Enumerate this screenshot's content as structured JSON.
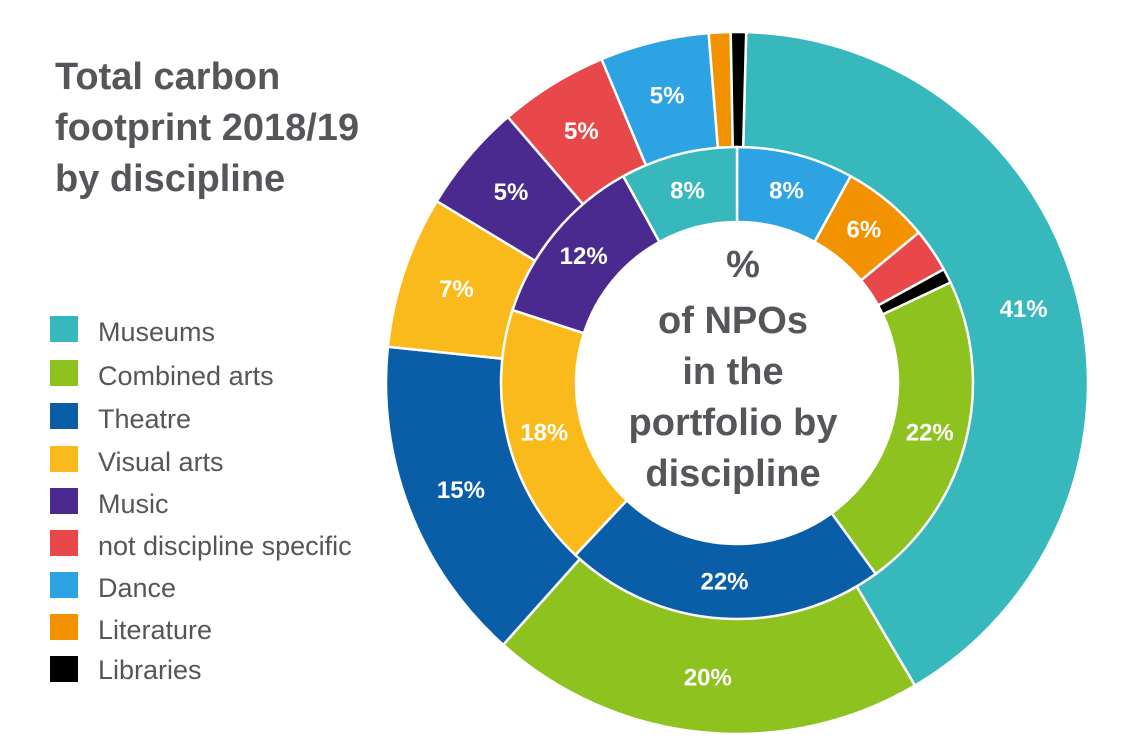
{
  "chart_data": {
    "type": "pie",
    "title": [
      "Total carbon",
      "footprint 2018/19",
      "by discipline"
    ],
    "center_label": [
      "%",
      "of NPOs",
      "in the",
      "portfolio by",
      "discipline"
    ],
    "legend": [
      {
        "name": "Museums",
        "color": "#37b8bd"
      },
      {
        "name": "Combined arts",
        "color": "#8dc21f"
      },
      {
        "name": "Theatre",
        "color": "#0a5ea8"
      },
      {
        "name": "Visual arts",
        "color": "#fbba1b"
      },
      {
        "name": "Music",
        "color": "#4b2a8f"
      },
      {
        "name": "not discipline specific",
        "color": "#e84849"
      },
      {
        "name": "Dance",
        "color": "#2ea3e3"
      },
      {
        "name": "Literature",
        "color": "#f39200"
      },
      {
        "name": "Libraries",
        "color": "#000000"
      }
    ],
    "series": [
      {
        "name": "Total carbon footprint 2018/19 by discipline",
        "ring": "outer",
        "values": [
          41,
          20,
          15,
          7,
          5,
          5,
          5,
          1,
          0.7
        ],
        "labels": [
          "41%",
          "20%",
          "15%",
          "7%",
          "5%",
          "5%",
          "5%",
          "",
          ""
        ]
      },
      {
        "name": "% of NPOs in the portfolio by discipline",
        "ring": "inner",
        "values": [
          8,
          22,
          22,
          18,
          12,
          3,
          8,
          6,
          1
        ],
        "labels": [
          "8%",
          "22%",
          "22%",
          "18%",
          "12%",
          "",
          "8%",
          "6%",
          ""
        ]
      }
    ],
    "inner_order": [
      6,
      7,
      5,
      8,
      1,
      2,
      3,
      4,
      0
    ]
  }
}
